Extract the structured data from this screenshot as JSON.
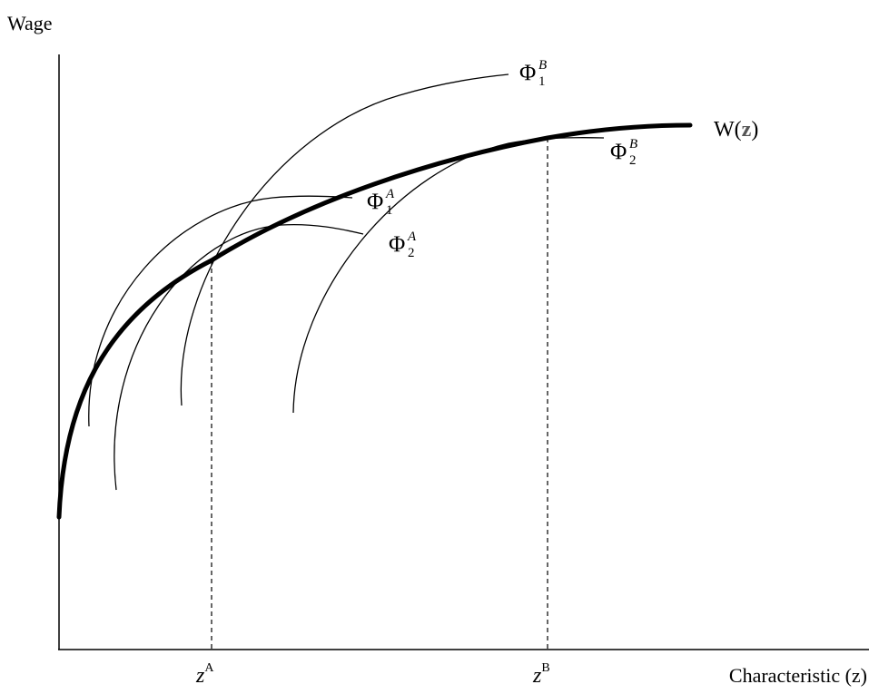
{
  "axes": {
    "y_label": "Wage",
    "x_label": "Characteristic (z)"
  },
  "ticks": {
    "z_a": {
      "main": "z",
      "sup": "A"
    },
    "z_b": {
      "main": "z",
      "sup": "B"
    }
  },
  "curves": {
    "wage_function": {
      "label_prefix": "W(",
      "label_var": "z",
      "label_suffix": ")"
    },
    "phi_1_b": {
      "symbol": "Φ",
      "sub": "1",
      "sup": "B"
    },
    "phi_2_b": {
      "symbol": "Φ",
      "sub": "2",
      "sup": "B"
    },
    "phi_1_a": {
      "symbol": "Φ",
      "sub": "1",
      "sup": "A"
    },
    "phi_2_a": {
      "symbol": "Φ",
      "sub": "2",
      "sup": "A"
    }
  },
  "colors": {
    "line": "#000000",
    "background": "#ffffff"
  }
}
